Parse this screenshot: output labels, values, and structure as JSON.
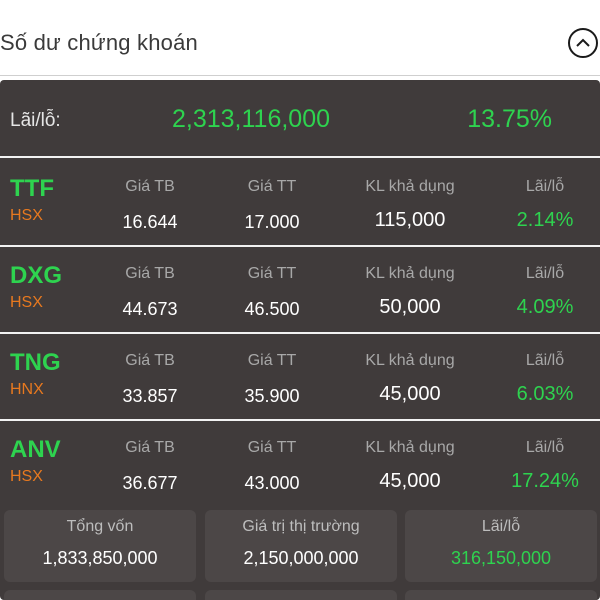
{
  "header": {
    "title": "Số dư chứng khoán",
    "toggle_icon": "chevron-up-icon"
  },
  "summary": {
    "label": "Lãi/lỗ:",
    "amount": "2,313,116,000",
    "percent": "13.75%"
  },
  "columns": {
    "avg_price": "Giá TB",
    "market_price": "Giá TT",
    "available_qty": "KL khả dụng",
    "pnl": "Lãi/lỗ"
  },
  "holdings": [
    {
      "symbol": "TTF",
      "exchange": "HSX",
      "avg_price": "16.644",
      "market_price": "17.000",
      "available_qty": "115,000",
      "pnl": "2.14%"
    },
    {
      "symbol": "DXG",
      "exchange": "HSX",
      "avg_price": "44.673",
      "market_price": "46.500",
      "available_qty": "50,000",
      "pnl": "4.09%"
    },
    {
      "symbol": "TNG",
      "exchange": "HNX",
      "avg_price": "33.857",
      "market_price": "35.900",
      "available_qty": "45,000",
      "pnl": "6.03%"
    },
    {
      "symbol": "ANV",
      "exchange": "HSX",
      "avg_price": "36.677",
      "market_price": "43.000",
      "available_qty": "45,000",
      "pnl": "17.24%"
    }
  ],
  "totals": [
    {
      "label": "Tổng vốn",
      "value": "1,833,850,000"
    },
    {
      "label": "Giá trị thị trường",
      "value": "2,150,000,000"
    },
    {
      "label": "Lãi/lỗ",
      "value": "316,150,000"
    }
  ],
  "colors": {
    "positive": "#2ed34f",
    "exchange": "#e8791f",
    "panel": "#403b3b"
  }
}
